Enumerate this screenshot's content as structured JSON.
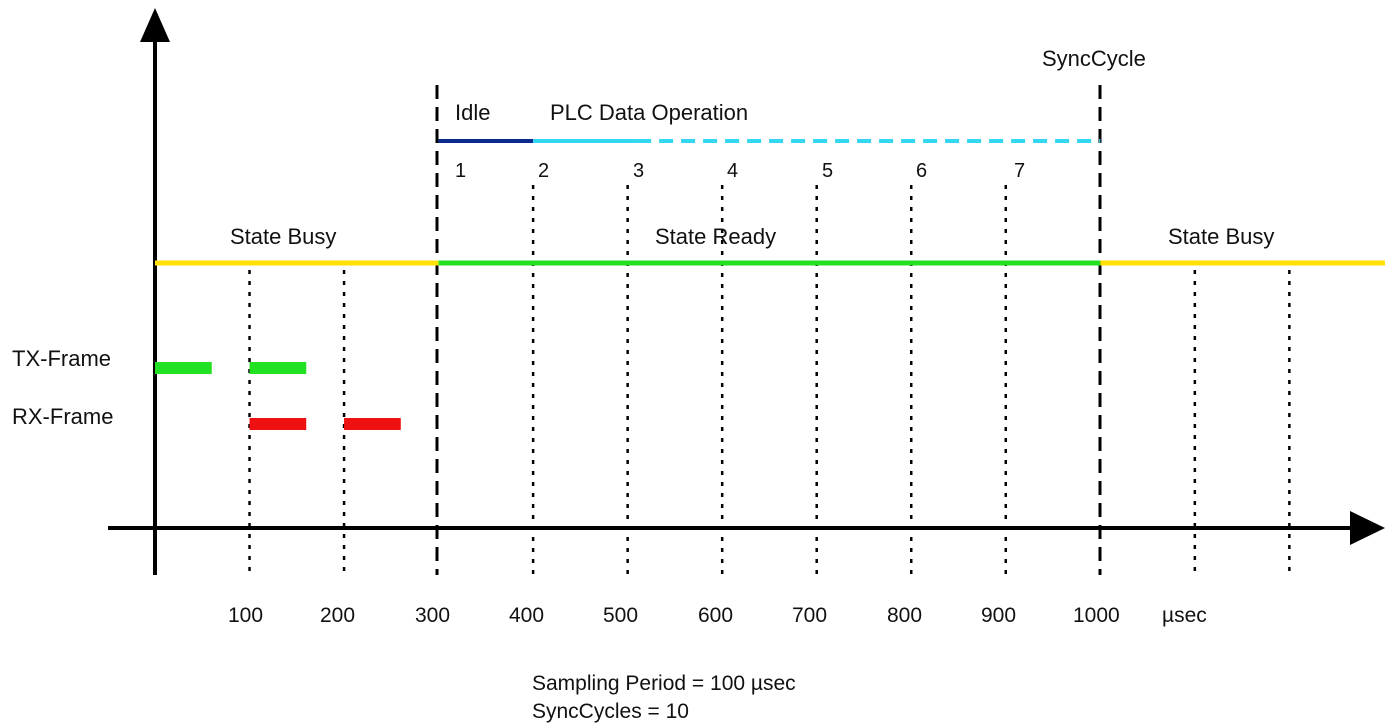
{
  "labels": {
    "sync_cycle": "SyncCycle",
    "idle": "Idle",
    "plc_data_operation": "PLC Data Operation",
    "state_busy_left": "State Busy",
    "state_ready": "State Ready",
    "state_busy_right": "State Busy",
    "tx_frame": "TX-Frame",
    "rx_frame": "RX-Frame",
    "unit": "µsec"
  },
  "phase_numbers": [
    "1",
    "2",
    "3",
    "4",
    "5",
    "6",
    "7"
  ],
  "x_ticks": [
    "100",
    "200",
    "300",
    "400",
    "500",
    "600",
    "700",
    "800",
    "900",
    "1000"
  ],
  "notes": {
    "sampling_period": "Sampling Period = 100 µsec",
    "sync_cycles": "SyncCycles = 10"
  },
  "colors": {
    "axis": "#000000",
    "state_busy": "#ffe000",
    "state_ready": "#22e022",
    "tx_frame": "#22e022",
    "rx_frame": "#ee1111",
    "idle": "#0a2a8c",
    "plc_operation": "#33d8f0"
  },
  "chart_data": {
    "type": "timing",
    "x_unit": "µsec",
    "x_ticks": [
      100,
      200,
      300,
      400,
      500,
      600,
      700,
      800,
      900,
      1000
    ],
    "states": [
      {
        "name": "State Busy",
        "start": 0,
        "end": 300
      },
      {
        "name": "State Ready",
        "start": 300,
        "end": 1000
      },
      {
        "name": "State Busy",
        "start": 1000,
        "end": 1300
      }
    ],
    "tx_frames": [
      [
        0,
        60
      ],
      [
        100,
        160
      ]
    ],
    "rx_frames": [
      [
        100,
        160
      ],
      [
        200,
        260
      ]
    ],
    "idle": [
      300,
      400
    ],
    "plc_data_operation": {
      "solid": [
        400,
        510
      ],
      "dashed": [
        510,
        1000
      ]
    },
    "sync_cycle_at": 1000,
    "sampling_period": 100,
    "sync_cycles": 10
  }
}
